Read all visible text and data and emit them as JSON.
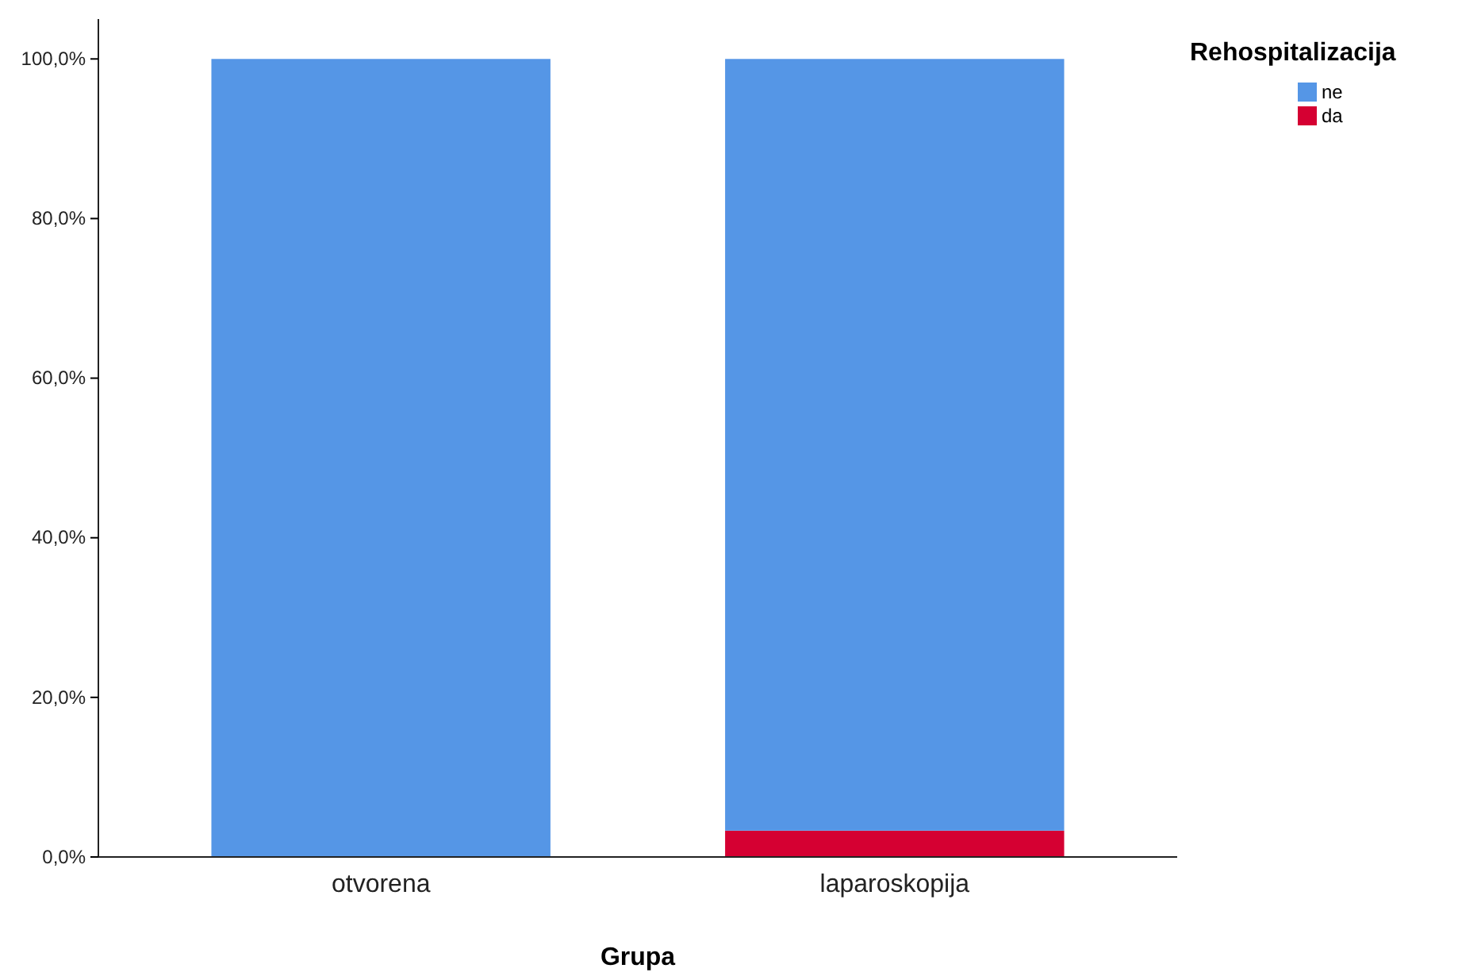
{
  "chart_data": {
    "type": "bar",
    "stacked": true,
    "xlabel": "Grupa",
    "legend_title": "Rehospitalizacija",
    "legend": "top right",
    "grid": false,
    "categories": [
      "otvorena",
      "laparoskopija"
    ],
    "series": [
      {
        "name": "da",
        "color": "#d50032",
        "values": [
          0,
          3.3
        ]
      },
      {
        "name": "ne",
        "color": "#5596e6",
        "values": [
          100,
          96.7
        ]
      }
    ],
    "ylim": [
      0,
      105
    ],
    "yticks": [
      {
        "value": 0,
        "label": "0,0%"
      },
      {
        "value": 20,
        "label": "20,0%"
      },
      {
        "value": 40,
        "label": "40,0%"
      },
      {
        "value": 60,
        "label": "60,0%"
      },
      {
        "value": 80,
        "label": "80,0%"
      },
      {
        "value": 100,
        "label": "100,0%"
      }
    ]
  }
}
